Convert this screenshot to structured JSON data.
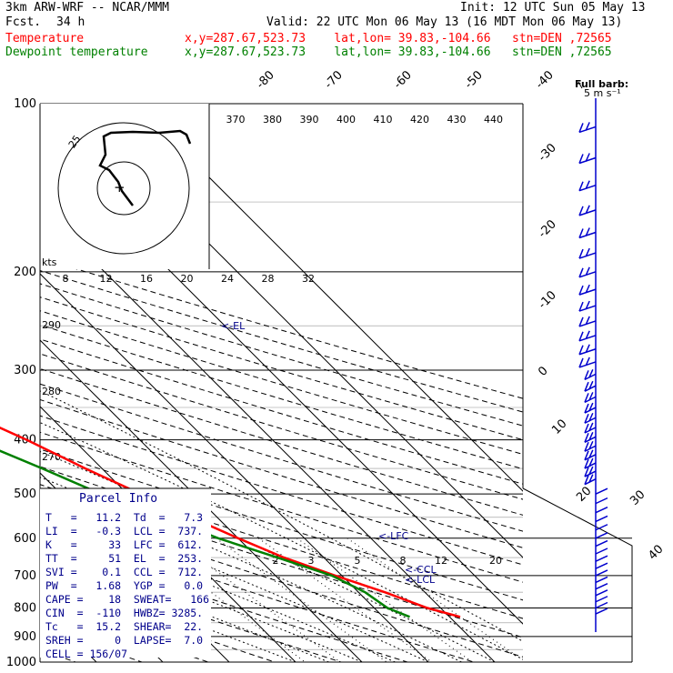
{
  "header": {
    "model": "3km ARW-WRF -- NCAR/MMM",
    "init": "Init: 12 UTC Sun 05 May 13",
    "fcst_label": "Fcst.",
    "fcst_value": "34 h",
    "valid": "Valid: 22 UTC Mon 06 May 13 (16 MDT Mon 06 May 13)",
    "temp_label": "Temperature",
    "dew_label": "Dewpoint temperature",
    "location": "x,y=287.67,523.73    lat,lon= 39.83,-104.66   stn=DEN ,72565",
    "barb_label": "Full barb:",
    "barb_unit": "5 m s⁻¹"
  },
  "hodograph": {
    "units": "kts",
    "ring_label": "25",
    "marker": "+",
    "temp_label": "20"
  },
  "lines": {
    "el": "<-EL",
    "lfc": "<-LFC",
    "ccl": "<-CCL",
    "lcl": "<-LCL"
  },
  "parcel": {
    "title": "Parcel Info",
    "rows": [
      "T   =   11.2  Td  =   7.3",
      "LI  =   -0.3  LCL =  737.",
      "K   =     33  LFC =  612.",
      "TT  =     51  EL  =  253.",
      "SVI =    0.1  CCL =  712.",
      "PW  =   1.68  YGP =   0.0",
      "CAPE =    18  SWEAT=   166",
      "CIN  =  -110  HWBZ= 3285.",
      "Tc   =  15.2  SHEAR=  22.",
      "SREH =     0  LAPSE=  7.0",
      "CELL = 156/07"
    ]
  },
  "colors": {
    "temp": "#ff0000",
    "dew": "#008000",
    "info": "#00008b",
    "wind": "#0000cd"
  },
  "chart_data": {
    "type": "line",
    "title": "Skew-T log-P sounding, stn=DEN 72565",
    "y_axis": "Pressure (hPa)",
    "pressure_labels": [
      100,
      200,
      300,
      400,
      500,
      600,
      700,
      800,
      900,
      1000
    ],
    "temperature_labels": [
      -80,
      -70,
      -60,
      -50,
      -40,
      -30,
      -20,
      -10,
      0,
      10,
      20,
      30,
      40
    ],
    "theta_labels": [
      290,
      280,
      270
    ],
    "theta_e_labels": [
      370,
      380,
      390,
      400,
      410,
      420,
      430,
      440
    ],
    "mixing_ratio_top_labels": [
      8,
      12,
      16,
      20,
      24,
      28,
      32
    ],
    "mixing_ratio_labels": [
      2,
      3,
      5,
      8,
      12,
      20
    ],
    "series": [
      {
        "name": "Temperature",
        "points": [
          [
            830,
            21.6
          ],
          [
            800,
            18.0
          ],
          [
            750,
            14.0
          ],
          [
            700,
            9.0
          ],
          [
            650,
            4.0
          ],
          [
            600,
            0.0
          ],
          [
            550,
            -4.0
          ],
          [
            500,
            -8.0
          ],
          [
            450,
            -12.5
          ],
          [
            400,
            -17.0
          ],
          [
            350,
            -23.0
          ],
          [
            300,
            -29.5
          ],
          [
            275,
            -33.0
          ],
          [
            250,
            -38.0
          ],
          [
            230,
            -41.0
          ],
          [
            215,
            -42.0
          ],
          [
            200,
            -42.0
          ],
          [
            180,
            -43.5
          ],
          [
            160,
            -47.0
          ],
          [
            140,
            -51.0
          ],
          [
            120,
            -56.0
          ],
          [
            100,
            -60.0
          ]
        ]
      },
      {
        "name": "Dewpoint temperature",
        "points": [
          [
            830,
            14.0
          ],
          [
            800,
            12.0
          ],
          [
            750,
            11.0
          ],
          [
            700,
            8.5
          ],
          [
            650,
            3.0
          ],
          [
            600,
            -3.0
          ],
          [
            550,
            -8.0
          ],
          [
            500,
            -14.0
          ],
          [
            450,
            -19.0
          ],
          [
            400,
            -25.0
          ],
          [
            350,
            -32.0
          ],
          [
            300,
            -40.0
          ],
          [
            275,
            -44.0
          ],
          [
            250,
            -47.0
          ],
          [
            230,
            -53.0
          ],
          [
            210,
            -58.0
          ],
          [
            200,
            -60.0
          ],
          [
            180,
            -63.0
          ],
          [
            160,
            -69.0
          ],
          [
            140,
            -72.0
          ],
          [
            120,
            -77.0
          ],
          [
            100,
            -81.0
          ]
        ]
      }
    ]
  }
}
